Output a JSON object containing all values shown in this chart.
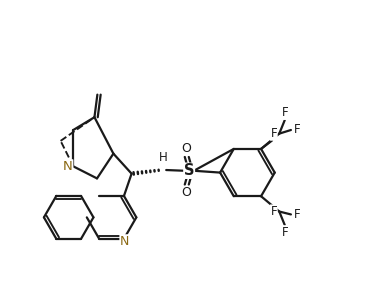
{
  "background": "#ffffff",
  "line_color": "#1a1a1a",
  "nitrogen_color": "#8B6914",
  "bond_lw": 1.6,
  "figsize": [
    3.85,
    3.0
  ],
  "dpi": 100,
  "xlim": [
    0,
    10.5
  ],
  "ylim": [
    0,
    8.2
  ]
}
